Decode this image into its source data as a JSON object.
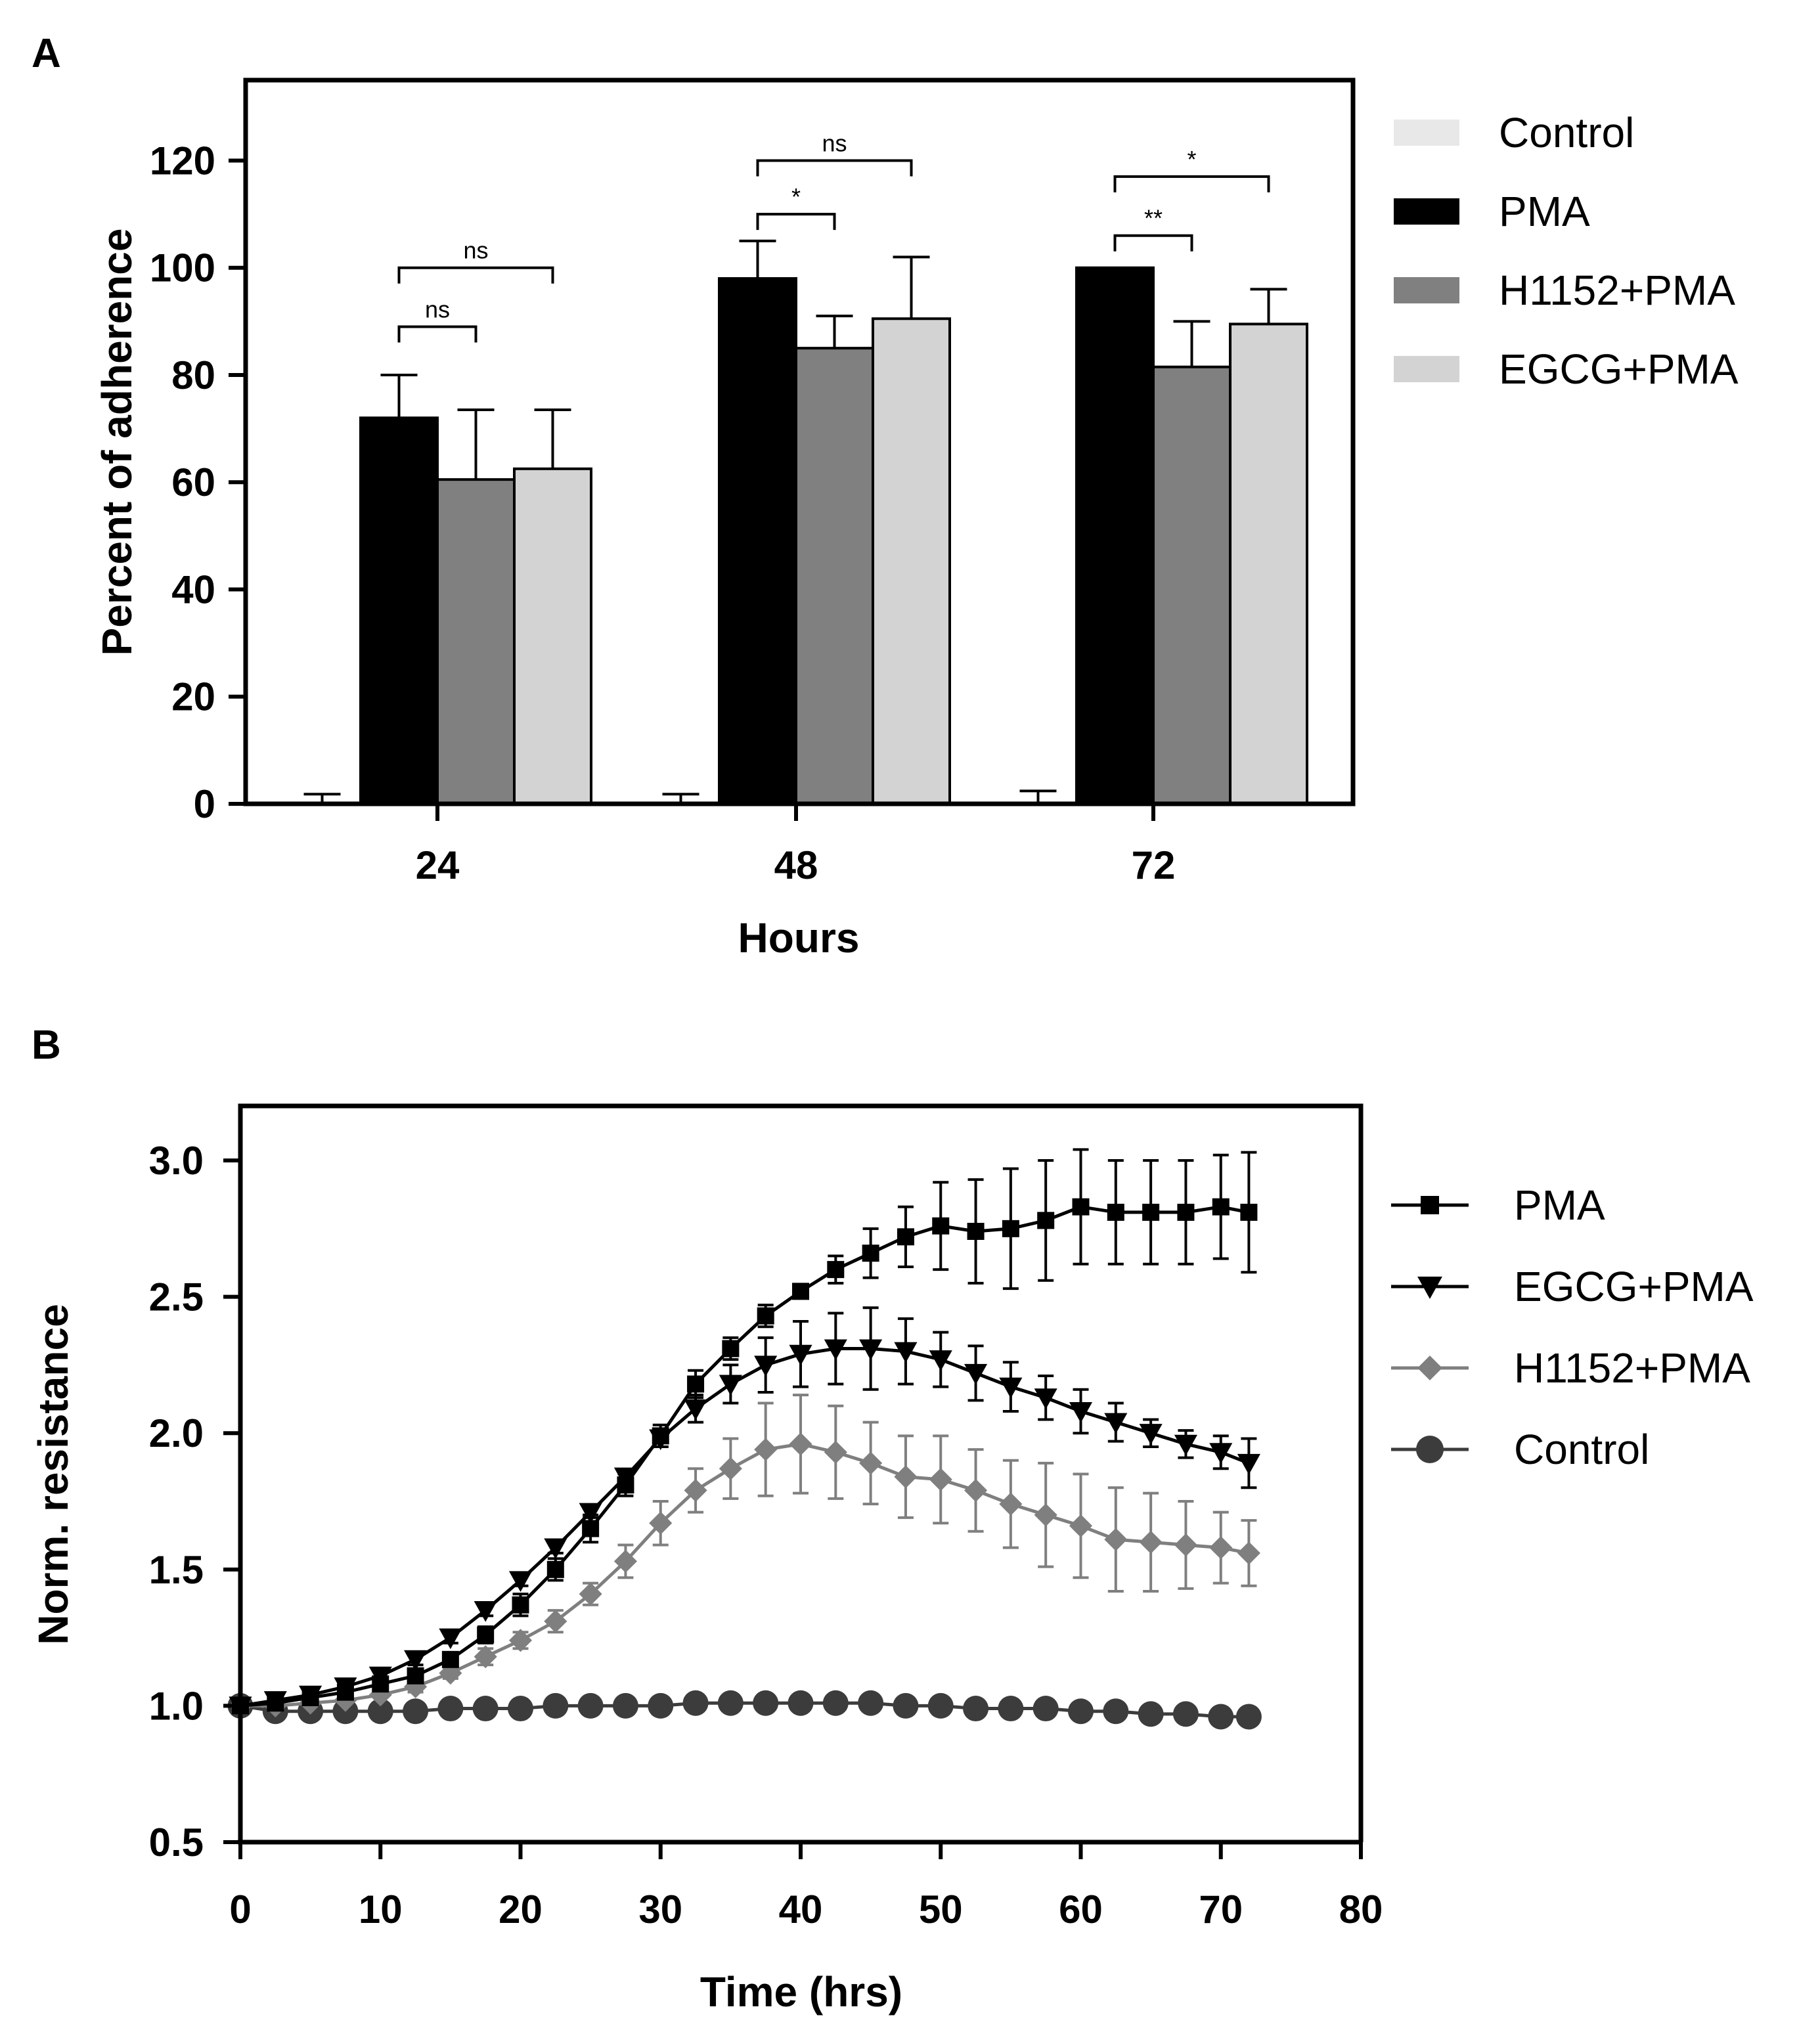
{
  "chart_data": [
    {
      "type": "bar",
      "panel": "A",
      "xlabel": "Hours",
      "ylabel": "Percent of adherence",
      "categories": [
        "24",
        "48",
        "72"
      ],
      "ylim": [
        0,
        135
      ],
      "yticks": [
        0,
        20,
        40,
        60,
        80,
        100,
        120
      ],
      "grid": false,
      "legend_placement": "right",
      "series": [
        {
          "name": "Control",
          "color": "#e8e8e8",
          "values": [
            0,
            0,
            0
          ],
          "errors": [
            1.8,
            1.8,
            2.4
          ]
        },
        {
          "name": "PMA",
          "color": "#000000",
          "values": [
            72,
            98,
            100
          ],
          "errors": [
            8,
            7,
            0
          ]
        },
        {
          "name": "H1152+PMA",
          "color": "#808080",
          "values": [
            60.5,
            85,
            81.5
          ],
          "errors": [
            13,
            6,
            8.5
          ]
        },
        {
          "name": "EGCG+PMA",
          "color": "#d3d3d3",
          "values": [
            62.5,
            90.5,
            89.5
          ],
          "errors": [
            11,
            11.5,
            6.5
          ]
        }
      ],
      "significance": [
        {
          "category": "24",
          "from": "PMA",
          "to": "H1152+PMA",
          "label": "ns"
        },
        {
          "category": "24",
          "from": "PMA",
          "to": "EGCG+PMA",
          "label": "ns"
        },
        {
          "category": "48",
          "from": "PMA",
          "to": "H1152+PMA",
          "label": "*"
        },
        {
          "category": "48",
          "from": "PMA",
          "to": "EGCG+PMA",
          "label": "ns"
        },
        {
          "category": "72",
          "from": "PMA",
          "to": "H1152+PMA",
          "label": "**"
        },
        {
          "category": "72",
          "from": "PMA",
          "to": "EGCG+PMA",
          "label": "*"
        }
      ]
    },
    {
      "type": "line",
      "panel": "B",
      "xlabel": "Time (hrs)",
      "ylabel": "Norm. resistance",
      "xlim": [
        0,
        80
      ],
      "ylim": [
        0.5,
        3.2
      ],
      "xticks": [
        0,
        10,
        20,
        30,
        40,
        50,
        60,
        70,
        80
      ],
      "yticks": [
        "0.5",
        "1.0",
        "1.5",
        "2.0",
        "2.5",
        "3.0"
      ],
      "grid": false,
      "legend_placement": "right",
      "x": [
        0,
        2.5,
        5,
        7.5,
        10,
        12.5,
        15,
        17.5,
        20,
        22.5,
        25,
        27.5,
        30,
        32.5,
        35,
        37.5,
        40,
        42.5,
        45,
        47.5,
        50,
        52.5,
        55,
        57.5,
        60,
        62.5,
        65,
        67.5,
        70,
        72
      ],
      "series": [
        {
          "name": "PMA",
          "marker": "square",
          "color": "#000000",
          "values": [
            1.0,
            1.01,
            1.03,
            1.05,
            1.08,
            1.11,
            1.17,
            1.26,
            1.37,
            1.5,
            1.65,
            1.81,
            1.99,
            2.18,
            2.31,
            2.43,
            2.52,
            2.6,
            2.66,
            2.72,
            2.76,
            2.74,
            2.75,
            2.78,
            2.83,
            2.81,
            2.81,
            2.81,
            2.83,
            2.81
          ],
          "errors": [
            0.01,
            0.01,
            0.01,
            0.01,
            0.01,
            0.02,
            0.02,
            0.03,
            0.04,
            0.04,
            0.05,
            0.04,
            0.04,
            0.05,
            0.04,
            0.04,
            0.02,
            0.05,
            0.09,
            0.11,
            0.16,
            0.19,
            0.22,
            0.22,
            0.21,
            0.19,
            0.19,
            0.19,
            0.19,
            0.22
          ]
        },
        {
          "name": "EGCG+PMA",
          "marker": "triangle-down",
          "color": "#000000",
          "values": [
            1.0,
            1.02,
            1.04,
            1.07,
            1.11,
            1.17,
            1.25,
            1.35,
            1.46,
            1.58,
            1.71,
            1.84,
            1.98,
            2.09,
            2.18,
            2.25,
            2.29,
            2.31,
            2.31,
            2.3,
            2.27,
            2.22,
            2.17,
            2.13,
            2.08,
            2.04,
            2.0,
            1.96,
            1.93,
            1.89
          ],
          "errors": [
            0.01,
            0.01,
            0.01,
            0.01,
            0.01,
            0.02,
            0.02,
            0.02,
            0.02,
            0.02,
            0.02,
            0.02,
            0.03,
            0.05,
            0.07,
            0.1,
            0.12,
            0.13,
            0.15,
            0.12,
            0.1,
            0.1,
            0.09,
            0.08,
            0.08,
            0.07,
            0.05,
            0.05,
            0.06,
            0.09
          ]
        },
        {
          "name": "H1152+PMA",
          "marker": "diamond",
          "color": "#7f7f7f",
          "values": [
            1.0,
            1.0,
            1.01,
            1.02,
            1.04,
            1.07,
            1.12,
            1.18,
            1.24,
            1.31,
            1.41,
            1.53,
            1.67,
            1.79,
            1.87,
            1.94,
            1.96,
            1.93,
            1.89,
            1.84,
            1.83,
            1.79,
            1.74,
            1.7,
            1.66,
            1.61,
            1.6,
            1.59,
            1.58,
            1.56
          ],
          "errors": [
            0.01,
            0.01,
            0.01,
            0.01,
            0.01,
            0.02,
            0.02,
            0.03,
            0.03,
            0.04,
            0.04,
            0.06,
            0.08,
            0.08,
            0.11,
            0.17,
            0.18,
            0.17,
            0.15,
            0.15,
            0.16,
            0.15,
            0.16,
            0.19,
            0.19,
            0.19,
            0.18,
            0.16,
            0.13,
            0.12
          ]
        },
        {
          "name": "Control",
          "marker": "circle",
          "color": "#3c3c3c",
          "values": [
            1.0,
            0.98,
            0.98,
            0.98,
            0.98,
            0.98,
            0.99,
            0.99,
            0.99,
            1.0,
            1.0,
            1.0,
            1.0,
            1.01,
            1.01,
            1.01,
            1.01,
            1.01,
            1.01,
            1.0,
            1.0,
            0.99,
            0.99,
            0.99,
            0.98,
            0.98,
            0.97,
            0.97,
            0.96,
            0.96
          ],
          "errors": [
            0,
            0,
            0,
            0,
            0,
            0,
            0,
            0,
            0,
            0,
            0,
            0,
            0,
            0,
            0,
            0,
            0,
            0,
            0,
            0,
            0,
            0,
            0,
            0,
            0,
            0,
            0,
            0,
            0,
            0
          ]
        }
      ]
    }
  ],
  "panels": {
    "a": {
      "letter": "A"
    },
    "b": {
      "letter": "B"
    }
  }
}
